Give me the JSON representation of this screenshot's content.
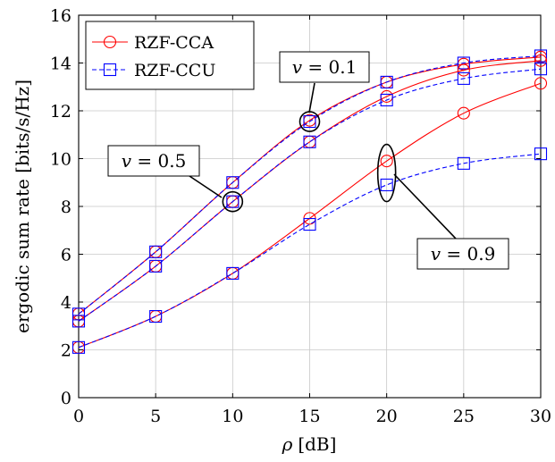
{
  "chart_data": {
    "type": "line",
    "xlabel_var": "ρ",
    "xlabel_unit": "[dB]",
    "ylabel": "ergodic sum rate [bits/s/Hz]",
    "xlim": [
      0,
      30
    ],
    "ylim": [
      0,
      16
    ],
    "xticks": [
      "0",
      "5",
      "10",
      "15",
      "20",
      "25",
      "30"
    ],
    "yticks": [
      "0",
      "2",
      "4",
      "6",
      "8",
      "10",
      "12",
      "14",
      "16"
    ],
    "grid": true,
    "legend_position": "top-left",
    "x": [
      0,
      5,
      10,
      15,
      20,
      25,
      30
    ],
    "series": [
      {
        "name": "RZF-CCA",
        "group": "v=0.1",
        "color": "#ff0000",
        "marker": "circle",
        "dash": "solid",
        "values": [
          3.5,
          6.1,
          9.0,
          11.6,
          13.2,
          13.95,
          14.25
        ]
      },
      {
        "name": "RZF-CCU",
        "group": "v=0.1",
        "color": "#0000ff",
        "marker": "square",
        "dash": "dashed",
        "values": [
          3.5,
          6.1,
          9.0,
          11.55,
          13.2,
          14.0,
          14.3
        ]
      },
      {
        "name": "RZF-CCA",
        "group": "v=0.5",
        "color": "#ff0000",
        "marker": "circle",
        "dash": "solid",
        "values": [
          3.2,
          5.5,
          8.2,
          10.7,
          12.6,
          13.7,
          14.1
        ]
      },
      {
        "name": "RZF-CCU",
        "group": "v=0.5",
        "color": "#0000ff",
        "marker": "square",
        "dash": "dashed",
        "values": [
          3.2,
          5.5,
          8.2,
          10.7,
          12.45,
          13.35,
          13.75
        ]
      },
      {
        "name": "RZF-CCA",
        "group": "v=0.9",
        "color": "#ff0000",
        "marker": "circle",
        "dash": "solid",
        "values": [
          2.1,
          3.4,
          5.2,
          7.5,
          9.9,
          11.9,
          13.15
        ]
      },
      {
        "name": "RZF-CCU",
        "group": "v=0.9",
        "color": "#0000ff",
        "marker": "square",
        "dash": "dashed",
        "values": [
          2.1,
          3.4,
          5.2,
          7.25,
          8.9,
          9.8,
          10.2
        ]
      }
    ],
    "legend": [
      {
        "label": "RZF-CCA",
        "color": "#ff0000",
        "marker": "circle",
        "dash": "solid"
      },
      {
        "label": "RZF-CCU",
        "color": "#0000ff",
        "marker": "square",
        "dash": "dashed"
      }
    ],
    "annotations": [
      {
        "label_var": "v",
        "label_rest": " = 0.1",
        "ellipse_center": [
          15,
          11.55
        ]
      },
      {
        "label_var": "v",
        "label_rest": " = 0.5",
        "ellipse_center": [
          10,
          8.2
        ]
      },
      {
        "label_var": "v",
        "label_rest": " = 0.9",
        "ellipse_center": [
          20,
          9.4
        ]
      }
    ]
  }
}
